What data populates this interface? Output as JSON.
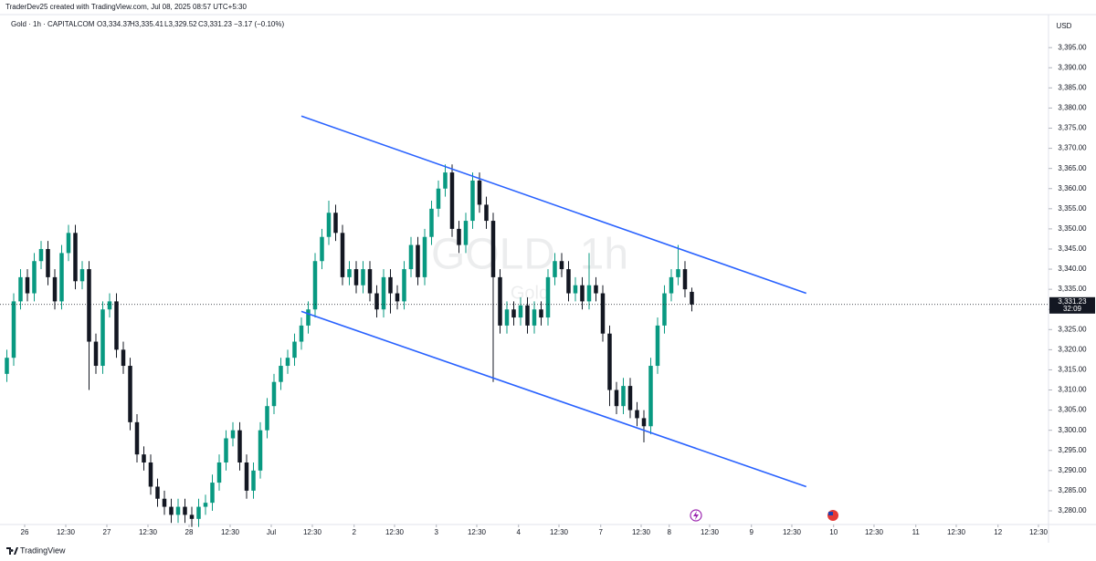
{
  "header": {
    "credit": "TraderDev25 created with TradingView.com, Jul 08, 2025 08:57 UTC+5:30"
  },
  "footer": {
    "brand": "TradingView"
  },
  "chart_data": {
    "type": "candlestick",
    "legend": {
      "symbol": "Gold · 1h · CAPITALCOM",
      "open": "O3,334.37",
      "high": "H3,335.41",
      "low": "L3,329.52",
      "close": "C3,331.23",
      "change": "−3.17 (−0.10%)"
    },
    "watermark": {
      "title": "GOLD, 1h",
      "subtitle": "Gold"
    },
    "currency": "USD",
    "price_label": "3,331.23",
    "countdown": "32:09",
    "up_color": "#089981",
    "down_color": "#131722",
    "trendline_color": "#2962ff",
    "grid": false,
    "open": [
      3314,
      3318,
      3332,
      3338,
      3334,
      3342,
      3345,
      3338,
      3332,
      3344,
      3349,
      3337,
      3340,
      3322,
      3316,
      3330,
      3332,
      3320,
      3316,
      3302,
      3294,
      3292,
      3286,
      3283,
      3281,
      3279,
      3281,
      3279,
      3278,
      3281,
      3282,
      3287,
      3292,
      3298,
      3300,
      3292,
      3285,
      3290,
      3300,
      3306,
      3312,
      3316,
      3318,
      3322,
      3326,
      3330,
      3342,
      3348,
      3354,
      3349,
      3338,
      3340,
      3336,
      3340,
      3334,
      3330,
      3338,
      3334,
      3332,
      3340,
      3346,
      3338,
      3348,
      3355,
      3360,
      3364,
      3350,
      3346,
      3352,
      3362,
      3356,
      3352,
      3338,
      3326,
      3330,
      3328,
      3331,
      3326,
      3330,
      3328,
      3338,
      3342,
      3340,
      3334,
      3336,
      3332,
      3336,
      3334,
      3324,
      3310,
      3306,
      3311,
      3305,
      3303,
      3301,
      3316,
      3326,
      3334,
      3338,
      3340,
      3334.37
    ],
    "high": [
      3320,
      3334,
      3340,
      3340,
      3344,
      3347,
      3347,
      3340,
      3346,
      3351,
      3351,
      3342,
      3342,
      3324,
      3332,
      3334,
      3334,
      3322,
      3318,
      3304,
      3296,
      3294,
      3288,
      3285,
      3283,
      3283,
      3283,
      3281,
      3283,
      3284,
      3289,
      3294,
      3300,
      3302,
      3302,
      3294,
      3292,
      3302,
      3308,
      3314,
      3318,
      3320,
      3324,
      3328,
      3332,
      3344,
      3350,
      3357,
      3356,
      3351,
      3342,
      3342,
      3342,
      3342,
      3336,
      3340,
      3340,
      3336,
      3342,
      3348,
      3348,
      3350,
      3357,
      3362,
      3366,
      3366,
      3352,
      3354,
      3364,
      3364,
      3358,
      3354,
      3340,
      3332,
      3332,
      3333,
      3333,
      3332,
      3332,
      3340,
      3344,
      3344,
      3342,
      3338,
      3338,
      3344,
      3338,
      3336,
      3326,
      3312,
      3313,
      3313,
      3307,
      3305,
      3318,
      3328,
      3336,
      3340,
      3346,
      3342,
      3335.41
    ],
    "low": [
      3312,
      3316,
      3330,
      3332,
      3332,
      3340,
      3336,
      3330,
      3330,
      3342,
      3335,
      3335,
      3310,
      3314,
      3314,
      3328,
      3318,
      3314,
      3300,
      3292,
      3290,
      3284,
      3281,
      3279,
      3277,
      3277,
      3277,
      3276,
      3276,
      3279,
      3280,
      3285,
      3290,
      3296,
      3290,
      3283,
      3283,
      3288,
      3298,
      3304,
      3310,
      3314,
      3316,
      3320,
      3324,
      3328,
      3340,
      3346,
      3347,
      3336,
      3336,
      3334,
      3334,
      3332,
      3328,
      3328,
      3329,
      3330,
      3330,
      3338,
      3336,
      3336,
      3346,
      3353,
      3358,
      3348,
      3344,
      3344,
      3350,
      3354,
      3350,
      3312,
      3324,
      3324,
      3326,
      3326,
      3324,
      3324,
      3326,
      3326,
      3336,
      3338,
      3332,
      3332,
      3330,
      3330,
      3332,
      3322,
      3306,
      3304,
      3304,
      3303,
      3301,
      3297,
      3299,
      3314,
      3324,
      3332,
      3336,
      3333,
      3329.52
    ],
    "close": [
      3318,
      3332,
      3338,
      3334,
      3342,
      3345,
      3338,
      3332,
      3344,
      3349,
      3337,
      3340,
      3322,
      3316,
      3330,
      3332,
      3320,
      3316,
      3302,
      3294,
      3292,
      3286,
      3283,
      3281,
      3279,
      3281,
      3279,
      3278,
      3281,
      3282,
      3287,
      3292,
      3298,
      3300,
      3292,
      3285,
      3290,
      3300,
      3306,
      3312,
      3316,
      3318,
      3322,
      3326,
      3330,
      3342,
      3348,
      3354,
      3349,
      3338,
      3340,
      3336,
      3340,
      3334,
      3330,
      3338,
      3334,
      3332,
      3340,
      3346,
      3338,
      3348,
      3355,
      3360,
      3364,
      3350,
      3346,
      3352,
      3362,
      3356,
      3352,
      3338,
      3326,
      3330,
      3328,
      3331,
      3326,
      3330,
      3328,
      3338,
      3342,
      3340,
      3334,
      3336,
      3332,
      3336,
      3334,
      3324,
      3310,
      3306,
      3311,
      3305,
      3303,
      3301,
      3316,
      3326,
      3334,
      3338,
      3340,
      3335,
      3331.23
    ],
    "trendlines": [
      {
        "x": [
          43,
          116.7
        ],
        "y": [
          3378,
          3334
        ]
      },
      {
        "x": [
          43,
          116.7
        ],
        "y": [
          3329.5,
          3286
        ]
      }
    ],
    "xlim": [
      -1,
      152.07
    ],
    "xticks": [
      {
        "value": 2.6,
        "label": "26"
      },
      {
        "value": 8.6,
        "label": "12:30"
      },
      {
        "value": 14.6,
        "label": "27"
      },
      {
        "value": 20.6,
        "label": "12:30"
      },
      {
        "value": 26.6,
        "label": "28"
      },
      {
        "value": 32.6,
        "label": "12:30"
      },
      {
        "value": 38.6,
        "label": "Jul"
      },
      {
        "value": 44.6,
        "label": "12:30"
      },
      {
        "value": 50.7,
        "label": "2"
      },
      {
        "value": 56.6,
        "label": "12:30"
      },
      {
        "value": 62.7,
        "label": "3"
      },
      {
        "value": 68.6,
        "label": "12:30"
      },
      {
        "value": 74.7,
        "label": "4"
      },
      {
        "value": 80.6,
        "label": "12:30"
      },
      {
        "value": 86.7,
        "label": "7"
      },
      {
        "value": 92.6,
        "label": "12:30"
      },
      {
        "value": 96.7,
        "label": "8"
      },
      {
        "value": 102.6,
        "label": "12:30"
      },
      {
        "value": 108.7,
        "label": "9"
      },
      {
        "value": 114.6,
        "label": "12:30"
      },
      {
        "value": 120.7,
        "label": "10"
      },
      {
        "value": 126.6,
        "label": "12:30"
      },
      {
        "value": 132.7,
        "label": "11"
      },
      {
        "value": 138.6,
        "label": "12:30"
      },
      {
        "value": 144.7,
        "label": "12"
      },
      {
        "value": 150.6,
        "label": "12:30"
      }
    ],
    "ylim": [
      3276.6,
      3403.2
    ],
    "yticks": [
      {
        "value": 3280,
        "label": "3,280.00"
      },
      {
        "value": 3285,
        "label": "3,285.00"
      },
      {
        "value": 3290,
        "label": "3,290.00"
      },
      {
        "value": 3295,
        "label": "3,295.00"
      },
      {
        "value": 3300,
        "label": "3,300.00"
      },
      {
        "value": 3305,
        "label": "3,305.00"
      },
      {
        "value": 3310,
        "label": "3,310.00"
      },
      {
        "value": 3315,
        "label": "3,315.00"
      },
      {
        "value": 3320,
        "label": "3,320.00"
      },
      {
        "value": 3325,
        "label": "3,325.00"
      },
      {
        "value": 3330,
        "label": "3,330.00"
      },
      {
        "value": 3335,
        "label": "3,335.00"
      },
      {
        "value": 3340,
        "label": "3,340.00"
      },
      {
        "value": 3345,
        "label": "3,345.00"
      },
      {
        "value": 3350,
        "label": "3,350.00"
      },
      {
        "value": 3355,
        "label": "3,355.00"
      },
      {
        "value": 3360,
        "label": "3,360.00"
      },
      {
        "value": 3365,
        "label": "3,365.00"
      },
      {
        "value": 3370,
        "label": "3,370.00"
      },
      {
        "value": 3375,
        "label": "3,375.00"
      },
      {
        "value": 3380,
        "label": "3,380.00"
      },
      {
        "value": 3385,
        "label": "3,385.00"
      },
      {
        "value": 3390,
        "label": "3,390.00"
      },
      {
        "value": 3395,
        "label": "3,395.00"
      }
    ]
  }
}
